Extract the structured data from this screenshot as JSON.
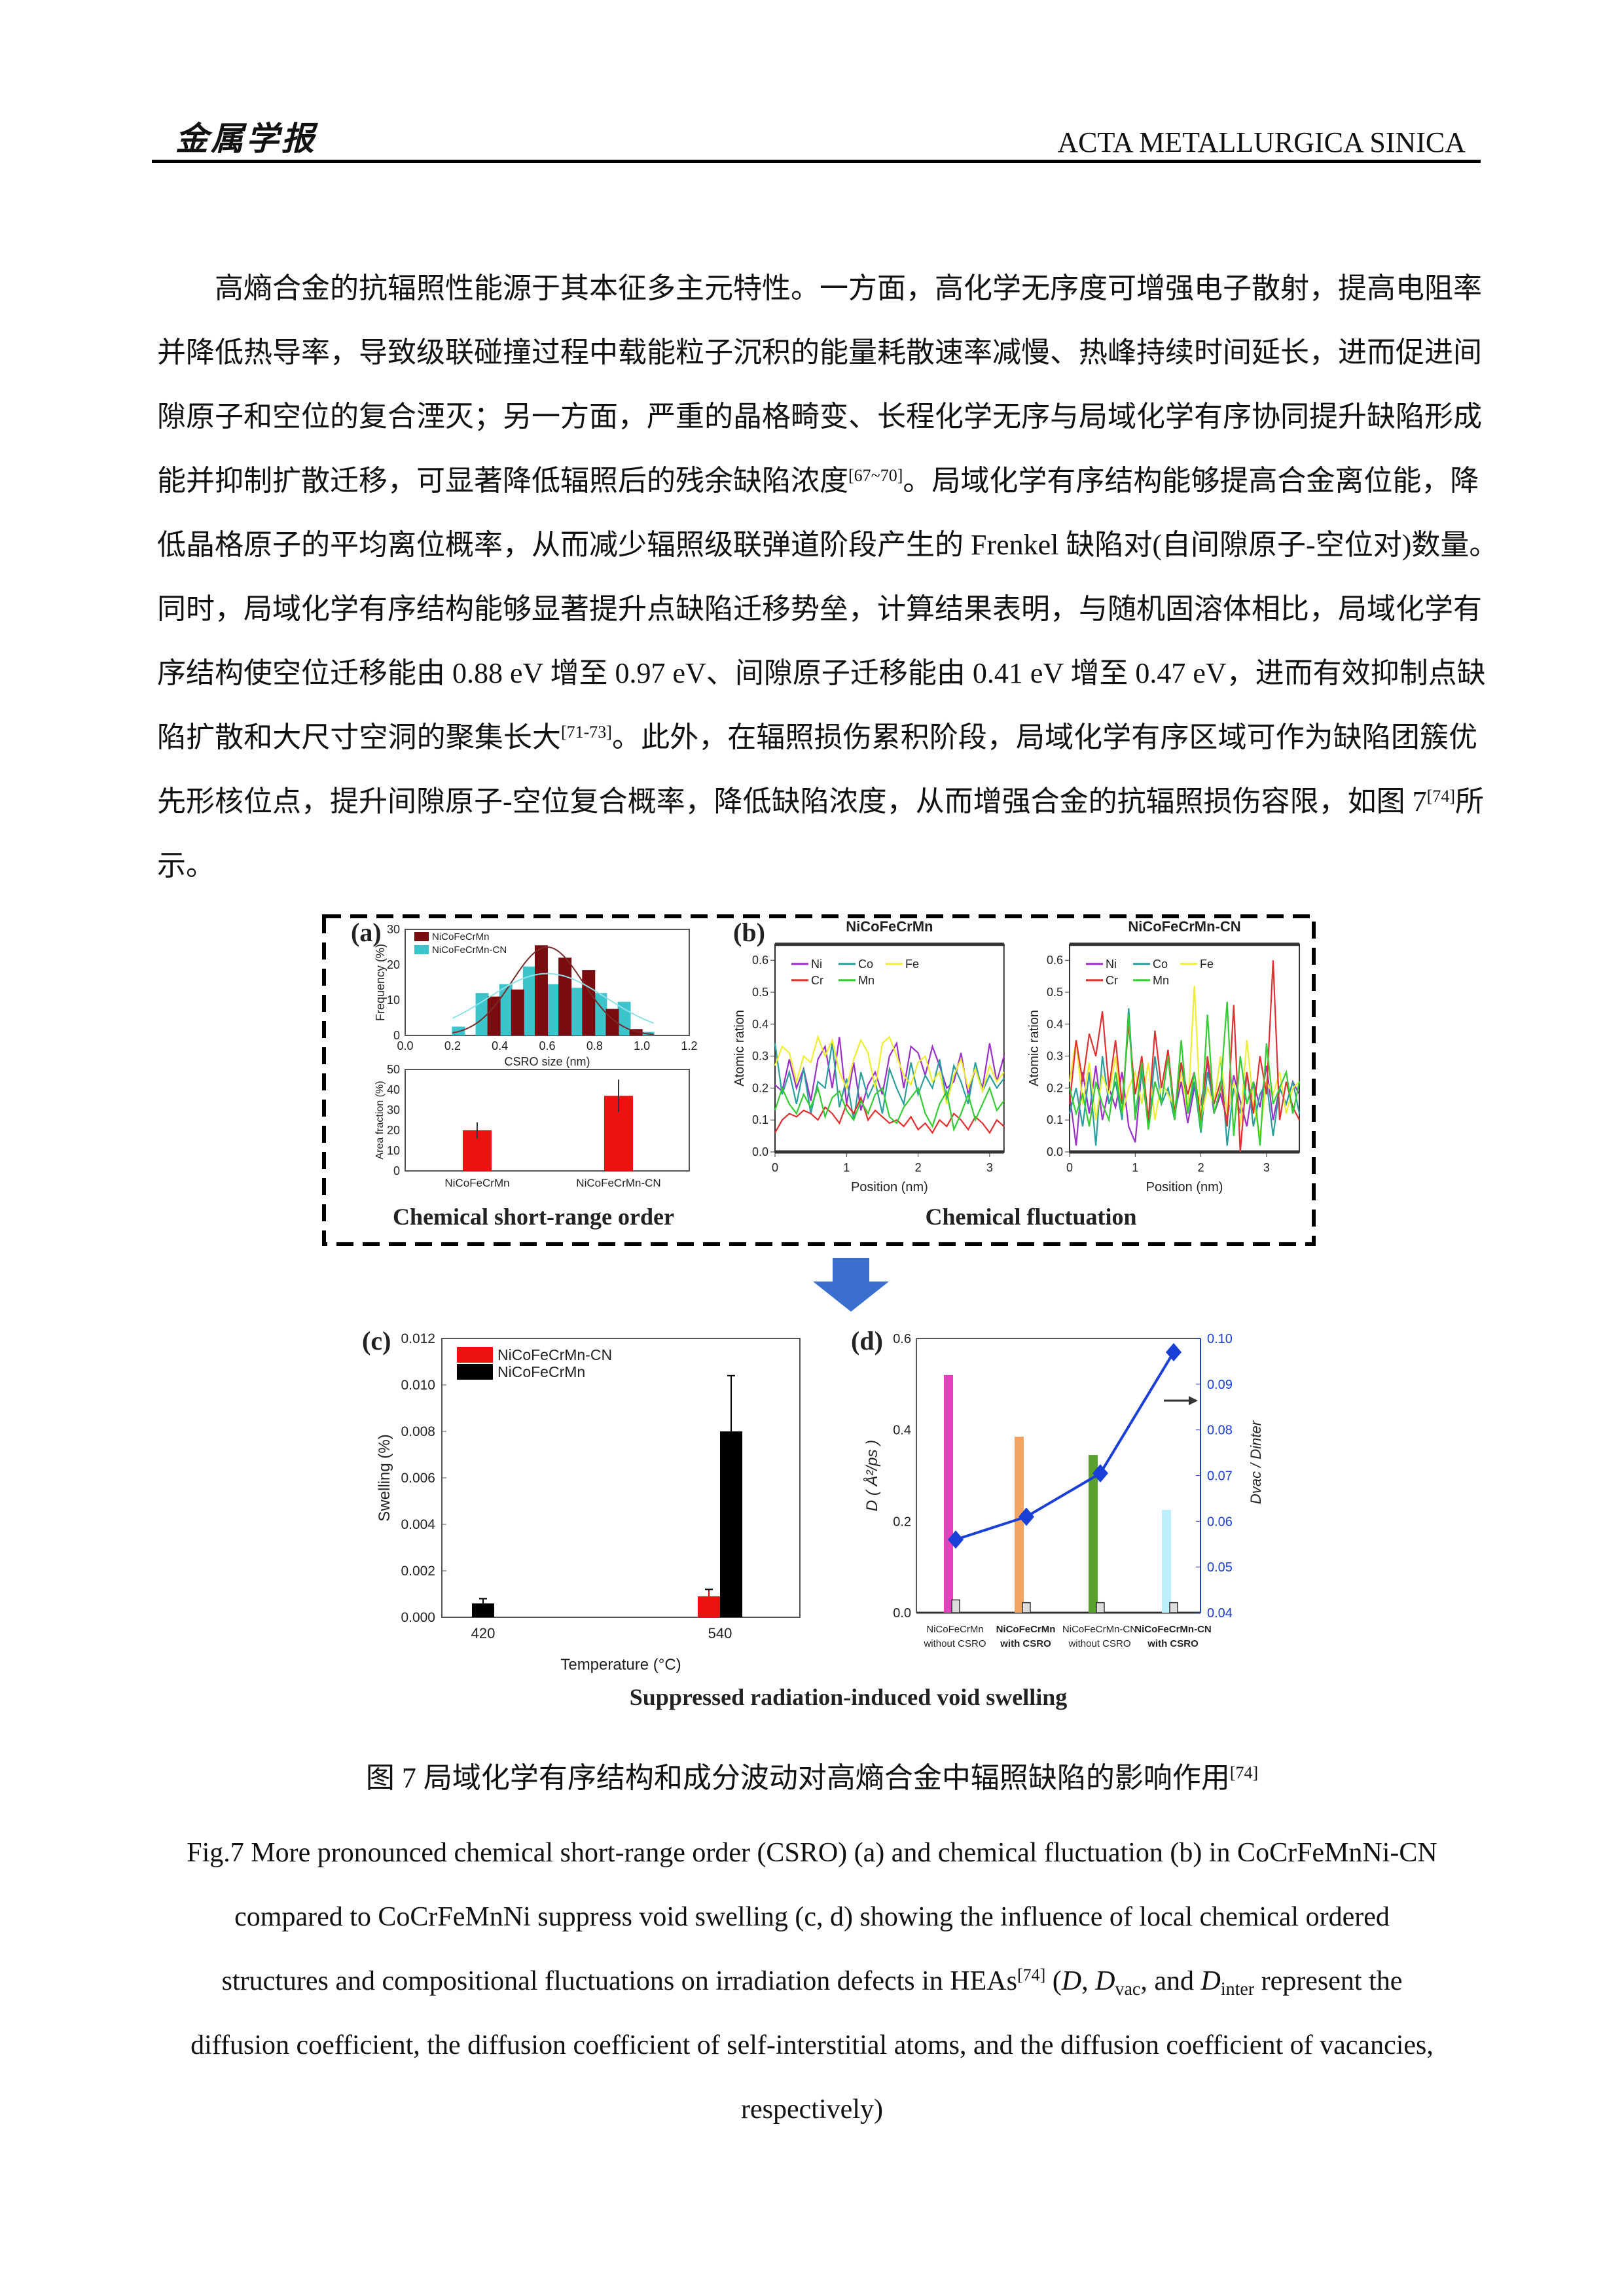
{
  "header": {
    "logo_text": "金属学报",
    "journal": "ACTA METALLURGICA SINICA"
  },
  "body_lines": [
    [
      {
        "t": "高熵合金的抗辐照性能源于其本征多主元特性。一方面，高化学无序度可增强电子散射，提高电阻率"
      }
    ],
    [
      {
        "t": "并降低热导率，导致级联碰撞过程中载能粒子沉积的能量耗散速率减慢、热峰持续时间延长，进而促进间"
      }
    ],
    [
      {
        "t": "隙原子和空位的复合湮灭；另一方面，严重的晶格畸变、长程化学无序与局域化学有序协同提升缺陷形成"
      }
    ],
    [
      {
        "t": "能并抑制扩散迁移，可显著降低辐照后的残余缺陷浓度"
      },
      {
        "sup": "[67~70]"
      },
      {
        "t": "。局域化学有序结构能够提高合金离位能，降"
      }
    ],
    [
      {
        "t": "低晶格原子的平均离位概率，从而减少辐照级联弹道阶段产生的 Frenkel 缺陷对(自间隙原子-空位对)数量。"
      }
    ],
    [
      {
        "t": "同时，局域化学有序结构能够显著提升点缺陷迁移势垒，计算结果表明，与随机固溶体相比，局域化学有"
      }
    ],
    [
      {
        "t": "序结构使空位迁移能由 0.88 eV 增至 0.97 eV、间隙原子迁移能由 0.41 eV 增至 0.47 eV，进而有效抑制点缺"
      }
    ],
    [
      {
        "t": "陷扩散和大尺寸空洞的聚集长大"
      },
      {
        "sup": "[71-73]"
      },
      {
        "t": "。此外，在辐照损伤累积阶段，局域化学有序区域可作为缺陷团簇优"
      }
    ],
    [
      {
        "t": "先形核位点，提升间隙原子-空位复合概率，降低缺陷浓度，从而增强合金的抗辐照损伤容限，如图 7"
      },
      {
        "sup": "[74]"
      },
      {
        "t": "所"
      }
    ],
    [
      {
        "t": "示。"
      }
    ]
  ],
  "figure": {
    "panel_labels": [
      "(a)",
      "(b)",
      "(c)",
      "(d)"
    ],
    "caption_a": "Chemical short-range order",
    "caption_b": "Chemical fluctuation",
    "caption_cd": "Suppressed radiation-induced  void swelling",
    "arrow_color": "#3a6fd0"
  },
  "caption_cn": [
    {
      "t": "图 7  局域化学有序结构和成分波动对高熵合金中辐照缺陷的影响作用"
    },
    {
      "sup": "[74]"
    }
  ],
  "caption_en_lines": [
    [
      {
        "t": "Fig.7 More pronounced chemical short-range order (CSRO) (a) and chemical fluctuation (b) in CoCrFeMnNi-CN"
      }
    ],
    [
      {
        "t": "compared to CoCrFeMnNi suppress void swelling (c, d) showing the influence of local chemical ordered"
      }
    ],
    [
      {
        "t": "structures and compositional fluctuations on irradiation defects in HEAs"
      },
      {
        "sup": "[74]"
      },
      {
        "t": " ("
      },
      {
        "i": "D"
      },
      {
        "t": ", "
      },
      {
        "i": "D"
      },
      {
        "sub": "vac"
      },
      {
        "t": ", and "
      },
      {
        "i": "D"
      },
      {
        "sub": "inter"
      },
      {
        "t": " represent the"
      }
    ],
    [
      {
        "t": "diffusion coefficient, the diffusion coefficient of self-interstitial atoms, and the diffusion coefficient of vacancies,"
      }
    ],
    [
      {
        "t": "respectively)"
      }
    ]
  ],
  "chart_data": [
    {
      "type": "bar",
      "xlabel": "CSRO size (nm)",
      "ylabel": "Frequency (%)",
      "xlim": [
        0,
        1.2
      ],
      "ylim": [
        0,
        30
      ],
      "xticks": [
        "0.0",
        "0.2",
        "0.4",
        "0.6",
        "0.8",
        "1.0",
        "1.2"
      ],
      "yticks": [
        "0",
        "10",
        "20",
        "30"
      ],
      "legend": "top-left",
      "series": [
        {
          "name": "NiCoFeCrMn",
          "color": "#7a0c10",
          "x": [
            0.375,
            0.475,
            0.575,
            0.675,
            0.775,
            0.875,
            0.975
          ],
          "values": [
            11,
            13,
            25.5,
            22,
            18.5,
            7.5,
            1.8
          ],
          "fit": {
            "peak": 25,
            "center": 0.6,
            "sigma": 0.15
          }
        },
        {
          "name": "NiCoFeCrMn-CN",
          "color": "#3cc3cc",
          "x": [
            0.225,
            0.325,
            0.425,
            0.525,
            0.625,
            0.725,
            0.825,
            0.925,
            1.025
          ],
          "values": [
            2.5,
            12,
            14.5,
            19.5,
            14.5,
            13.5,
            12,
            9.5,
            1
          ],
          "fit": {
            "peak": 17.5,
            "center": 0.6,
            "sigma": 0.25
          }
        }
      ]
    },
    {
      "type": "bar",
      "ylabel": "Area fraction (%)",
      "ylim": [
        0,
        50
      ],
      "yticks": [
        "0",
        "10",
        "20",
        "30",
        "40",
        "50"
      ],
      "categories": [
        "NiCoFeCrMn",
        "NiCoFeCrMn-CN"
      ],
      "values": [
        20,
        37
      ],
      "errors": [
        4,
        8
      ],
      "color": "#ee1111"
    },
    {
      "type": "line",
      "title": "NiCoFeCrMn",
      "xlabel": "Position (nm)",
      "ylabel": "Atomic ration",
      "xlim": [
        0,
        3.2
      ],
      "ylim": [
        0,
        0.65
      ],
      "xticks": [
        "0",
        "1",
        "2",
        "3"
      ],
      "yticks": [
        "0.0",
        "0.1",
        "0.2",
        "0.3",
        "0.4",
        "0.5",
        "0.6"
      ],
      "x": [
        0,
        0.1,
        0.2,
        0.3,
        0.4,
        0.5,
        0.6,
        0.7,
        0.8,
        0.9,
        1.0,
        1.1,
        1.2,
        1.3,
        1.4,
        1.5,
        1.6,
        1.7,
        1.8,
        1.9,
        2.0,
        2.1,
        2.2,
        2.3,
        2.4,
        2.5,
        2.6,
        2.7,
        2.8,
        2.9,
        3.0,
        3.1,
        3.2
      ],
      "series": [
        {
          "name": "Ni",
          "color": "#9b2fc9",
          "values": [
            0.21,
            0.19,
            0.29,
            0.2,
            0.26,
            0.16,
            0.29,
            0.33,
            0.2,
            0.36,
            0.15,
            0.28,
            0.13,
            0.21,
            0.25,
            0.18,
            0.3,
            0.34,
            0.2,
            0.33,
            0.31,
            0.24,
            0.33,
            0.27,
            0.2,
            0.22,
            0.31,
            0.18,
            0.26,
            0.2,
            0.34,
            0.22,
            0.3
          ]
        },
        {
          "name": "Co",
          "color": "#2a9d9d",
          "values": [
            0.34,
            0.18,
            0.25,
            0.15,
            0.26,
            0.12,
            0.22,
            0.2,
            0.34,
            0.14,
            0.23,
            0.1,
            0.25,
            0.17,
            0.22,
            0.12,
            0.26,
            0.2,
            0.15,
            0.28,
            0.18,
            0.24,
            0.2,
            0.29,
            0.16,
            0.27,
            0.22,
            0.15,
            0.28,
            0.19,
            0.24,
            0.2,
            0.23
          ]
        },
        {
          "name": "Fe",
          "color": "#eeee30",
          "values": [
            0.27,
            0.33,
            0.31,
            0.22,
            0.3,
            0.28,
            0.36,
            0.3,
            0.35,
            0.25,
            0.2,
            0.29,
            0.35,
            0.31,
            0.2,
            0.34,
            0.36,
            0.3,
            0.24,
            0.21,
            0.28,
            0.3,
            0.22,
            0.25,
            0.15,
            0.24,
            0.29,
            0.2,
            0.26,
            0.19,
            0.27,
            0.22,
            0.25
          ]
        },
        {
          "name": "Cr",
          "color": "#e03030",
          "values": [
            0.06,
            0.1,
            0.12,
            0.11,
            0.13,
            0.12,
            0.1,
            0.14,
            0.12,
            0.09,
            0.15,
            0.12,
            0.17,
            0.1,
            0.13,
            0.11,
            0.09,
            0.1,
            0.08,
            0.11,
            0.07,
            0.09,
            0.06,
            0.1,
            0.08,
            0.12,
            0.1,
            0.07,
            0.11,
            0.09,
            0.06,
            0.1,
            0.08
          ]
        },
        {
          "name": "Mn",
          "color": "#33cc33",
          "values": [
            0.13,
            0.2,
            0.15,
            0.12,
            0.18,
            0.14,
            0.2,
            0.11,
            0.17,
            0.19,
            0.13,
            0.1,
            0.16,
            0.12,
            0.18,
            0.2,
            0.11,
            0.09,
            0.14,
            0.17,
            0.2,
            0.12,
            0.08,
            0.15,
            0.19,
            0.07,
            0.12,
            0.18,
            0.1,
            0.15,
            0.2,
            0.13,
            0.16
          ]
        }
      ]
    },
    {
      "type": "line",
      "title": "NiCoFeCrMn-CN",
      "xlabel": "Position (nm)",
      "ylabel": "Atomic ration",
      "xlim": [
        0,
        3.5
      ],
      "ylim": [
        0,
        0.65
      ],
      "xticks": [
        "0",
        "1",
        "2",
        "3"
      ],
      "yticks": [
        "0.0",
        "0.1",
        "0.2",
        "0.3",
        "0.4",
        "0.5",
        "0.6"
      ],
      "x": [
        0,
        0.1,
        0.2,
        0.3,
        0.4,
        0.5,
        0.6,
        0.7,
        0.8,
        0.9,
        1.0,
        1.1,
        1.2,
        1.3,
        1.4,
        1.5,
        1.6,
        1.7,
        1.8,
        1.9,
        2.0,
        2.1,
        2.2,
        2.3,
        2.4,
        2.5,
        2.6,
        2.7,
        2.8,
        2.9,
        3.0,
        3.1,
        3.2,
        3.3,
        3.4,
        3.5
      ],
      "series": [
        {
          "name": "Ni",
          "color": "#9b2fc9",
          "values": [
            0.18,
            0.02,
            0.25,
            0.12,
            0.27,
            0.1,
            0.2,
            0.14,
            0.25,
            0.08,
            0.03,
            0.26,
            0.1,
            0.22,
            0.15,
            0.3,
            0.12,
            0.22,
            0.09,
            0.2,
            0.15,
            0.28,
            0.12,
            0.18,
            0.1,
            0.24,
            0.16,
            0.08,
            0.22,
            0.14,
            0.27,
            0.1,
            0.2,
            0.15,
            0.22,
            0.18
          ]
        },
        {
          "name": "Co",
          "color": "#2a9d9d",
          "values": [
            0.12,
            0.2,
            0.08,
            0.25,
            0.02,
            0.3,
            0.15,
            0.22,
            0.1,
            0.45,
            0.12,
            0.25,
            0.08,
            0.3,
            0.15,
            0.2,
            0.1,
            0.28,
            0.12,
            0.22,
            0.06,
            0.25,
            0.15,
            0.3,
            0.02,
            0.2,
            0.12,
            0.25,
            0.08,
            0.18,
            0.22,
            0.05,
            0.2,
            0.15,
            0.22,
            0.12
          ]
        },
        {
          "name": "Fe",
          "color": "#eeee30",
          "values": [
            0.22,
            0.35,
            0.15,
            0.28,
            0.1,
            0.24,
            0.18,
            0.3,
            0.12,
            0.2,
            0.25,
            0.15,
            0.28,
            0.1,
            0.22,
            0.18,
            0.14,
            0.25,
            0.12,
            0.52,
            0.1,
            0.2,
            0.15,
            0.3,
            0.12,
            0.22,
            0.08,
            0.35,
            0.15,
            0.05,
            0.22,
            0.18,
            0.25,
            0.12,
            0.2,
            0.22
          ]
        },
        {
          "name": "Cr",
          "color": "#e03030",
          "values": [
            0.15,
            0.35,
            0.22,
            0.37,
            0.3,
            0.44,
            0.2,
            0.35,
            0.15,
            0.4,
            0.18,
            0.3,
            0.1,
            0.38,
            0.2,
            0.32,
            0.12,
            0.28,
            0.18,
            0.25,
            0.1,
            0.3,
            0.15,
            0.22,
            0.08,
            0.46,
            0.0,
            0.25,
            0.12,
            0.3,
            0.18,
            0.6,
            0.1,
            0.22,
            0.14,
            0.1
          ]
        },
        {
          "name": "Mn",
          "color": "#33cc33",
          "values": [
            0.2,
            0.12,
            0.18,
            0.08,
            0.22,
            0.15,
            0.1,
            0.25,
            0.12,
            0.43,
            0.1,
            0.28,
            0.07,
            0.22,
            0.15,
            0.3,
            0.1,
            0.35,
            0.12,
            0.25,
            0.07,
            0.43,
            0.12,
            0.2,
            0.47,
            0.05,
            0.3,
            0.15,
            0.22,
            0.02,
            0.34,
            0.15,
            0.2,
            0.25,
            0.12,
            0.22
          ]
        }
      ]
    },
    {
      "type": "bar",
      "xlabel": "Temperature (°C)",
      "ylabel": "Swelling (%)",
      "ylim": [
        0,
        0.012
      ],
      "yticks": [
        "0.000",
        "0.002",
        "0.004",
        "0.006",
        "0.008",
        "0.010",
        "0.012"
      ],
      "categories": [
        "420",
        "540"
      ],
      "legend": "top-left",
      "series": [
        {
          "name": "NiCoFeCrMn-CN",
          "color": "#ee1111",
          "values": [
            null,
            0.0009
          ],
          "errors": [
            null,
            0.0003
          ]
        },
        {
          "name": "NiCoFeCrMn",
          "color": "#000000",
          "values": [
            0.0006,
            0.008
          ],
          "errors": [
            0.0002,
            0.0024
          ]
        }
      ]
    },
    {
      "type": "bar+line",
      "ylabel": "D ( Å²/ps )",
      "y2label": "Dvac / Dinter",
      "ylim": [
        0,
        0.6
      ],
      "y2lim": [
        0.04,
        0.1
      ],
      "yticks": [
        "0.0",
        "0.2",
        "0.4",
        "0.6"
      ],
      "y2ticks": [
        "0.04",
        "0.05",
        "0.06",
        "0.07",
        "0.08",
        "0.09",
        "0.10"
      ],
      "categories": [
        [
          "NiCoFeCrMn",
          "without CSRO"
        ],
        [
          "NiCoFeCrMn",
          "with CSRO"
        ],
        [
          "NiCoFeCrMn-CN",
          "without CSRO"
        ],
        [
          "NiCoFeCrMn-CN",
          "with CSRO"
        ]
      ],
      "category_bold": [
        false,
        true,
        false,
        true
      ],
      "bars_D": {
        "values": [
          0.52,
          0.385,
          0.345,
          0.225
        ],
        "colors": [
          "#e83fbf",
          "#f4a460",
          "#5aa02c",
          "#bdeefc"
        ]
      },
      "bars_hatched": [
        0.028,
        0.022,
        0.022,
        0.022
      ],
      "line_ratio": {
        "values": [
          0.056,
          0.061,
          0.0705,
          0.097
        ],
        "color": "#1a3fd6"
      }
    }
  ]
}
